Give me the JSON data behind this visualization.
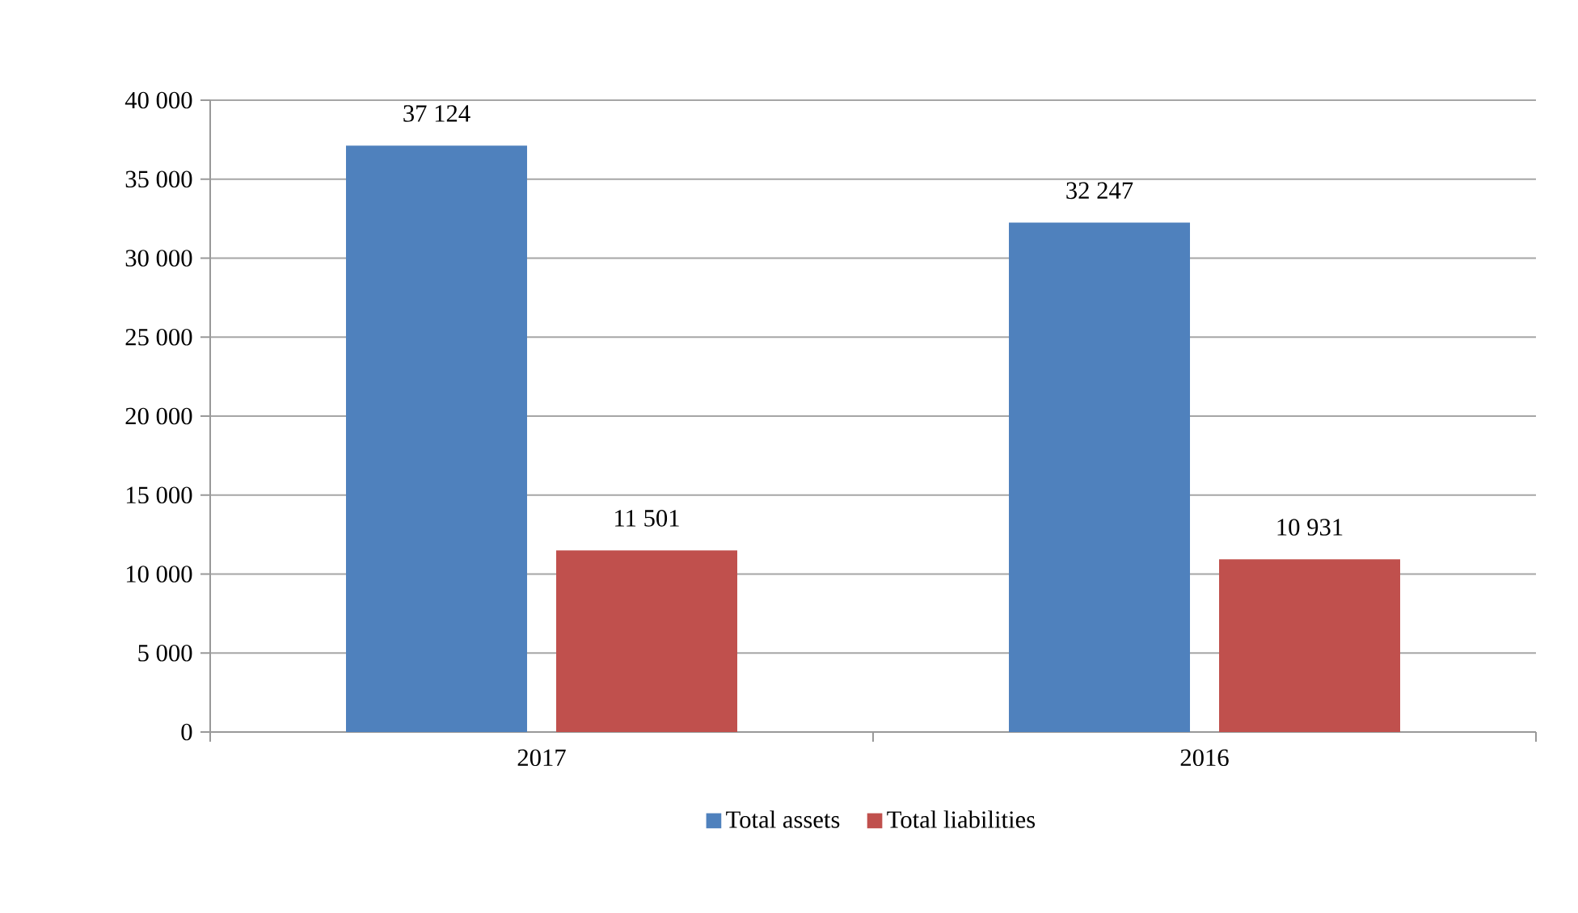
{
  "chart_data": {
    "type": "bar",
    "categories": [
      "2017",
      "2016"
    ],
    "series": [
      {
        "name": "Total assets",
        "color": "#4f81bd",
        "values": [
          37124,
          32247
        ],
        "value_labels": [
          "37 124",
          "32 247"
        ]
      },
      {
        "name": "Total liabilities",
        "color": "#c0504d",
        "values": [
          11501,
          10931
        ],
        "value_labels": [
          "11 501",
          "10 931"
        ]
      }
    ],
    "ylim": [
      0,
      40000
    ],
    "yticks": [
      0,
      {
        "value": 5000,
        "label": "5 000"
      },
      {
        "value": 10000,
        "label": "10 000"
      },
      {
        "value": 15000,
        "label": "15 000"
      },
      {
        "value": 20000,
        "label": "20 000"
      },
      {
        "value": 25000,
        "label": "25 000"
      },
      {
        "value": 30000,
        "label": "30 000"
      },
      {
        "value": 35000,
        "label": "35 000"
      },
      {
        "value": 40000,
        "label": "40 000"
      }
    ],
    "grid": "y",
    "legend": "bottom"
  }
}
